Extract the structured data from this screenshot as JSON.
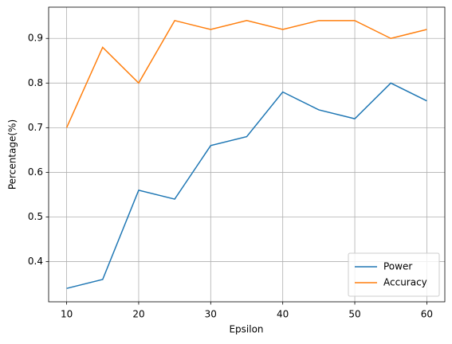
{
  "chart_data": {
    "type": "line",
    "x_label": "Epsilon",
    "y_label": "Percentage(%)",
    "x": [
      10,
      15,
      20,
      25,
      30,
      35,
      40,
      45,
      50,
      55,
      60
    ],
    "series": [
      {
        "name": "Power",
        "color": "#1f77b4",
        "values": [
          0.34,
          0.36,
          0.56,
          0.54,
          0.66,
          0.68,
          0.78,
          0.74,
          0.72,
          0.8,
          0.76
        ]
      },
      {
        "name": "Accuracy",
        "color": "#ff7f0e",
        "values": [
          0.7,
          0.88,
          0.8,
          0.94,
          0.92,
          0.94,
          0.92,
          0.94,
          0.94,
          0.9,
          0.92
        ]
      }
    ],
    "xlim": [
      7.5,
      62.5
    ],
    "xticks": [
      10,
      20,
      30,
      40,
      50,
      60
    ],
    "ylim": [
      0.31,
      0.97
    ],
    "yticks": [
      0.4,
      0.5,
      0.6,
      0.7,
      0.8,
      0.9
    ],
    "grid": true,
    "legend": "lower right"
  }
}
